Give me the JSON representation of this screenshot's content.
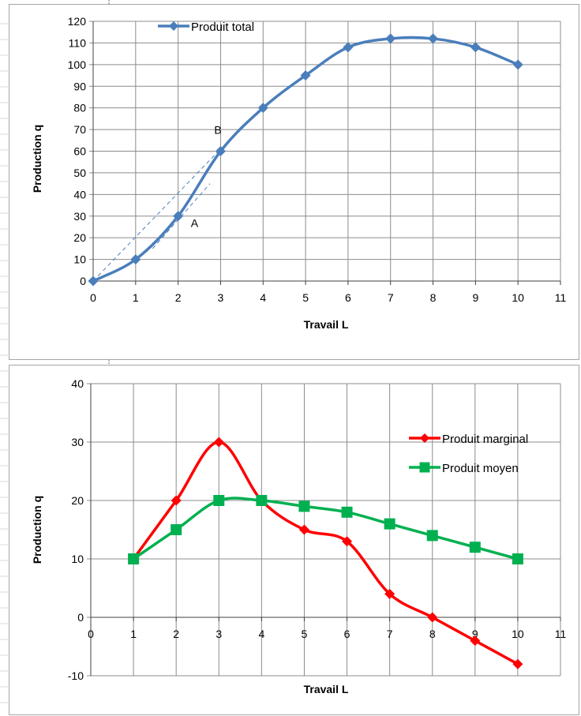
{
  "colors": {
    "produit_total": "#4a7ebb",
    "produit_marginal": "#ff0000",
    "produit_moyen": "#00b050",
    "grid": "#8c8c8c",
    "frame": "#a6a6a6",
    "sheet_line": "#d9d9d9"
  },
  "chart_data": [
    {
      "type": "line",
      "xlabel": "Travail L",
      "ylabel": "Production q",
      "xlim": [
        0,
        11
      ],
      "ylim": [
        0,
        120
      ],
      "x_ticks": [
        0,
        1,
        2,
        3,
        4,
        5,
        6,
        7,
        8,
        9,
        10,
        11
      ],
      "y_ticks": [
        0,
        10,
        20,
        30,
        40,
        50,
        60,
        70,
        80,
        90,
        100,
        110,
        120
      ],
      "grid": true,
      "smooth": true,
      "legend_position": "top-left",
      "series": [
        {
          "name": "Produit total",
          "marker": "diamond",
          "x": [
            0,
            1,
            2,
            3,
            4,
            5,
            6,
            7,
            8,
            9,
            10
          ],
          "values": [
            0,
            10,
            30,
            60,
            80,
            95,
            108,
            112,
            112,
            108,
            100
          ]
        }
      ],
      "annotations": [
        {
          "text": "A",
          "x": 2.3,
          "y": 25
        },
        {
          "text": "B",
          "x": 2.85,
          "y": 68
        }
      ],
      "dashed_lines": [
        {
          "from": [
            0,
            0
          ],
          "to": [
            2.95,
            60
          ]
        },
        {
          "from": [
            1.4,
            15
          ],
          "to": [
            2.75,
            45
          ]
        }
      ]
    },
    {
      "type": "line",
      "xlabel": "Travail L",
      "ylabel": "Production q",
      "xlim": [
        0,
        11
      ],
      "ylim": [
        -10,
        40
      ],
      "x_ticks": [
        0,
        1,
        2,
        3,
        4,
        5,
        6,
        7,
        8,
        9,
        10,
        11
      ],
      "y_ticks": [
        -10,
        0,
        10,
        20,
        30,
        40
      ],
      "grid": true,
      "smooth": true,
      "legend_position": "right",
      "series": [
        {
          "name": "Produit marginal",
          "marker": "diamond",
          "x": [
            1,
            2,
            3,
            4,
            5,
            6,
            7,
            8,
            9,
            10
          ],
          "values": [
            10,
            20,
            30,
            20,
            15,
            13,
            4,
            0,
            -4,
            -8
          ]
        },
        {
          "name": "Produit moyen",
          "marker": "square",
          "x": [
            1,
            2,
            3,
            4,
            5,
            6,
            7,
            8,
            9,
            10
          ],
          "values": [
            10,
            15,
            20,
            20,
            19,
            18,
            16,
            14,
            12,
            10
          ]
        }
      ]
    }
  ]
}
